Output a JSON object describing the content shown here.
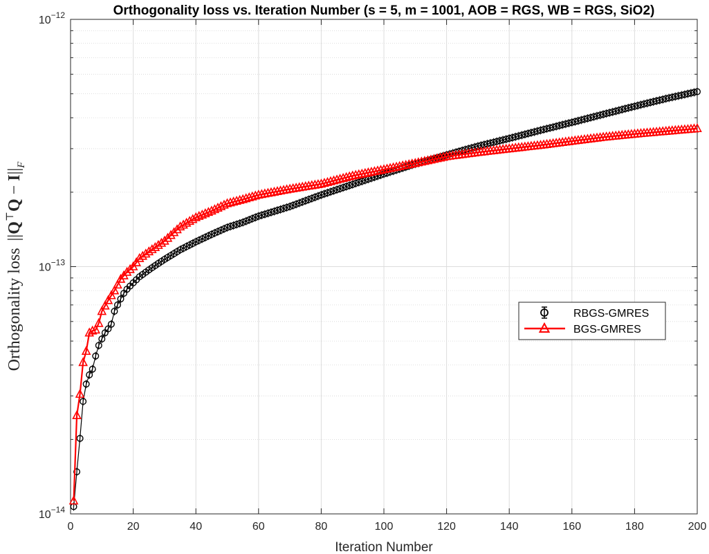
{
  "chart_data": {
    "type": "line",
    "title": "Orthogonality loss vs. Iteration Number (s = 5, m = 1001, AOB = RGS, WB = RGS, SiO2)",
    "xlabel": "Iteration Number",
    "ylabel": "Orthogonality loss ||QᵀQ − I||F",
    "ylabel_parts": {
      "main": "Orthogonality loss",
      "q1": "Q",
      "sup": "⊤",
      "q2": "Q",
      "minus": "−",
      "i": "I",
      "sub": "F"
    },
    "xlim": [
      0,
      200
    ],
    "ylim": [
      1e-14,
      1e-12
    ],
    "yscale": "log",
    "grid": true,
    "xticks": [
      "0",
      "20",
      "40",
      "60",
      "80",
      "100",
      "120",
      "140",
      "160",
      "180",
      "200"
    ],
    "xtick_values": [
      0,
      20,
      40,
      60,
      80,
      100,
      120,
      140,
      160,
      180,
      200
    ],
    "yticks": [
      {
        "value": 1e-14,
        "base": "10",
        "exp": "−14"
      },
      {
        "value": 1e-13,
        "base": "10",
        "exp": "−13"
      },
      {
        "value": 1e-12,
        "base": "10",
        "exp": "−12"
      }
    ],
    "legend_position": "right",
    "series": [
      {
        "name": "RBGS-GMRES",
        "color": "#000000",
        "marker": "circle",
        "errorbar": true,
        "x": [
          1,
          2,
          3,
          4,
          5,
          6,
          7,
          8,
          9,
          10,
          11,
          12,
          13,
          14,
          15,
          16,
          17,
          18,
          20,
          22,
          25,
          28,
          30,
          35,
          40,
          45,
          50,
          55,
          60,
          70,
          80,
          90,
          100,
          110,
          120,
          130,
          140,
          150,
          160,
          170,
          180,
          190,
          200
        ],
        "y": [
          1.07e-14,
          1.48e-14,
          2.02e-14,
          2.85e-14,
          3.35e-14,
          3.65e-14,
          3.85e-14,
          4.35e-14,
          4.8e-14,
          5.1e-14,
          5.4e-14,
          5.6e-14,
          5.85e-14,
          6.6e-14,
          7e-14,
          7.4e-14,
          7.8e-14,
          8.1e-14,
          8.6e-14,
          9.1e-14,
          9.7e-14,
          1.03e-13,
          1.07e-13,
          1.17e-13,
          1.26e-13,
          1.35e-13,
          1.44e-13,
          1.51e-13,
          1.6e-13,
          1.75e-13,
          1.95e-13,
          2.15e-13,
          2.37e-13,
          2.6e-13,
          2.83e-13,
          3.07e-13,
          3.3e-13,
          3.56e-13,
          3.83e-13,
          4.13e-13,
          4.45e-13,
          4.78e-13,
          5.1e-13
        ]
      },
      {
        "name": "BGS-GMRES",
        "color": "#ff0000",
        "marker": "triangle",
        "x": [
          1,
          2,
          3,
          4,
          5,
          6,
          7,
          8,
          9,
          10,
          12,
          14,
          16,
          18,
          20,
          22,
          25,
          28,
          30,
          35,
          40,
          45,
          50,
          55,
          60,
          70,
          80,
          90,
          100,
          110,
          120,
          130,
          140,
          150,
          160,
          170,
          180,
          190,
          200
        ],
        "y": [
          1.13e-14,
          2.5e-14,
          3.05e-14,
          4.1e-14,
          4.55e-14,
          5.4e-14,
          5.5e-14,
          5.55e-14,
          5.9e-14,
          6.6e-14,
          7.3e-14,
          8e-14,
          8.9e-14,
          9.5e-14,
          1e-13,
          1.08e-13,
          1.15e-13,
          1.22e-13,
          1.27e-13,
          1.45e-13,
          1.58e-13,
          1.68e-13,
          1.8e-13,
          1.87e-13,
          1.95e-13,
          2.06e-13,
          2.16e-13,
          2.33e-13,
          2.47e-13,
          2.62e-13,
          2.79e-13,
          2.9e-13,
          3e-13,
          3.1e-13,
          3.22e-13,
          3.34e-13,
          3.44e-13,
          3.53e-13,
          3.62e-13
        ]
      }
    ]
  }
}
